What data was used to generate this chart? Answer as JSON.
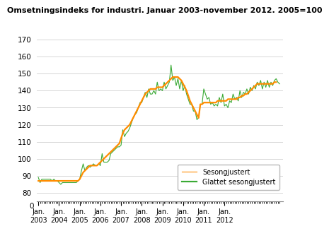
{
  "title": "Omsetningsindeks for industri. Januar 2003-november 2012. 2005=100",
  "legend_labels": [
    "Glattet sesongjustert",
    "Sesongjustert"
  ],
  "line_colors": [
    "#FF8C00",
    "#3aaa35"
  ],
  "ylim_main": [
    75,
    170
  ],
  "yticks_main": [
    80,
    90,
    100,
    110,
    120,
    130,
    140,
    150,
    160,
    170
  ],
  "background_color": "#ffffff",
  "grid_color": "#d0d0d0",
  "smoothed": [
    87,
    87,
    87,
    87,
    87,
    87,
    87,
    87,
    87,
    87,
    87,
    87,
    87,
    87,
    87,
    87,
    87,
    87,
    87,
    87,
    87,
    87,
    87,
    87,
    88,
    90,
    92,
    93,
    94,
    95,
    96,
    96,
    96,
    96,
    96,
    97,
    98,
    99,
    100,
    101,
    102,
    103,
    104,
    105,
    106,
    107,
    108,
    109,
    112,
    115,
    117,
    118,
    119,
    120,
    122,
    124,
    126,
    128,
    130,
    132,
    134,
    136,
    138,
    139,
    140,
    141,
    141,
    141,
    141,
    142,
    142,
    142,
    142,
    143,
    144,
    145,
    146,
    147,
    148,
    148,
    148,
    148,
    147,
    146,
    144,
    142,
    140,
    137,
    134,
    132,
    130,
    128,
    126,
    124,
    132,
    132,
    133,
    133,
    133,
    133,
    133,
    133,
    133,
    133,
    134,
    134,
    134,
    134,
    134,
    134,
    135,
    135,
    135,
    135,
    135,
    135,
    136,
    136,
    137,
    137,
    138,
    138,
    139,
    140,
    141,
    142,
    143,
    144,
    144,
    144,
    144,
    144,
    144,
    144,
    144,
    144,
    144,
    145,
    145
  ],
  "seasonal": [
    89,
    86,
    88,
    88,
    88,
    88,
    88,
    88,
    87,
    88,
    87,
    87,
    86,
    85,
    86,
    86,
    86,
    86,
    86,
    86,
    86,
    86,
    86,
    87,
    88,
    93,
    97,
    93,
    95,
    96,
    95,
    96,
    97,
    96,
    96,
    97,
    96,
    103,
    98,
    98,
    98,
    99,
    103,
    104,
    105,
    106,
    107,
    107,
    108,
    117,
    113,
    115,
    116,
    118,
    121,
    124,
    126,
    127,
    130,
    133,
    133,
    136,
    139,
    136,
    141,
    138,
    138,
    140,
    138,
    145,
    140,
    141,
    140,
    145,
    141,
    143,
    145,
    155,
    146,
    148,
    143,
    147,
    141,
    146,
    140,
    143,
    138,
    135,
    132,
    132,
    128,
    128,
    123,
    124,
    132,
    132,
    141,
    138,
    135,
    136,
    132,
    133,
    131,
    132,
    131,
    136,
    133,
    138,
    131,
    132,
    130,
    134,
    133,
    138,
    135,
    136,
    134,
    140,
    136,
    139,
    138,
    141,
    138,
    142,
    140,
    143,
    141,
    145,
    143,
    146,
    141,
    145,
    142,
    146,
    142,
    145,
    143,
    146,
    147,
    145,
    144
  ]
}
